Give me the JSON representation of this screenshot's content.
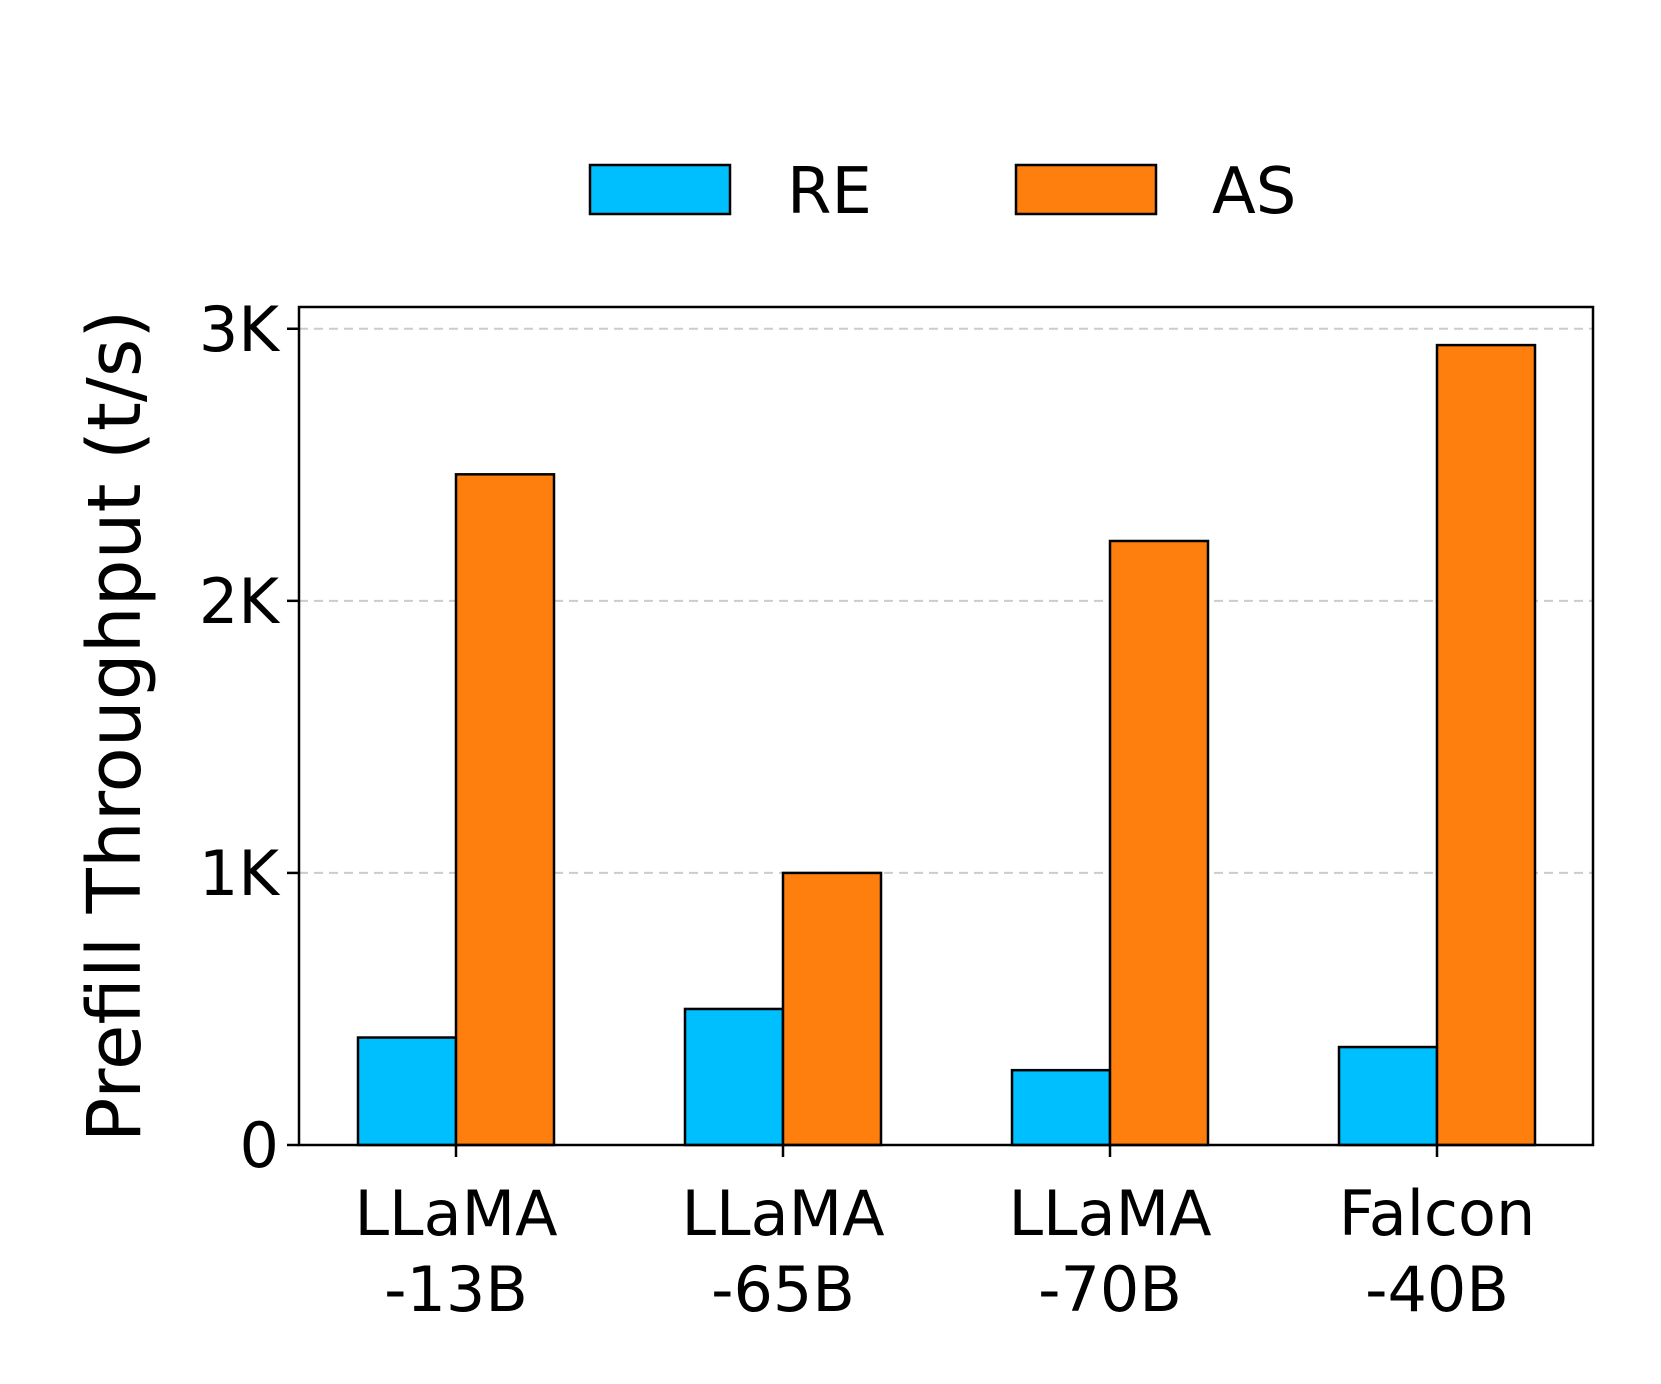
{
  "chart_data": {
    "type": "bar",
    "title": "",
    "xlabel": "",
    "ylabel": "Prefill Throughput (t/s)",
    "categories": [
      [
        "LLaMA",
        "-13B"
      ],
      [
        "LLaMA",
        "-65B"
      ],
      [
        "LLaMA",
        "-70B"
      ],
      [
        "Falcon",
        "-40B"
      ]
    ],
    "series": [
      {
        "name": "RE",
        "color": "#00bfff",
        "values": [
          395,
          500,
          275,
          360
        ]
      },
      {
        "name": "AS",
        "color": "#ff7f0e",
        "values": [
          2465,
          1000,
          2220,
          2940
        ]
      }
    ],
    "ylim": [
      0,
      3080
    ],
    "yticks": [
      0,
      1000,
      2000,
      3000
    ],
    "ytick_labels": [
      "0",
      "1K",
      "2K",
      "3K"
    ],
    "grid": "y, dashed",
    "legend": "top-center"
  }
}
